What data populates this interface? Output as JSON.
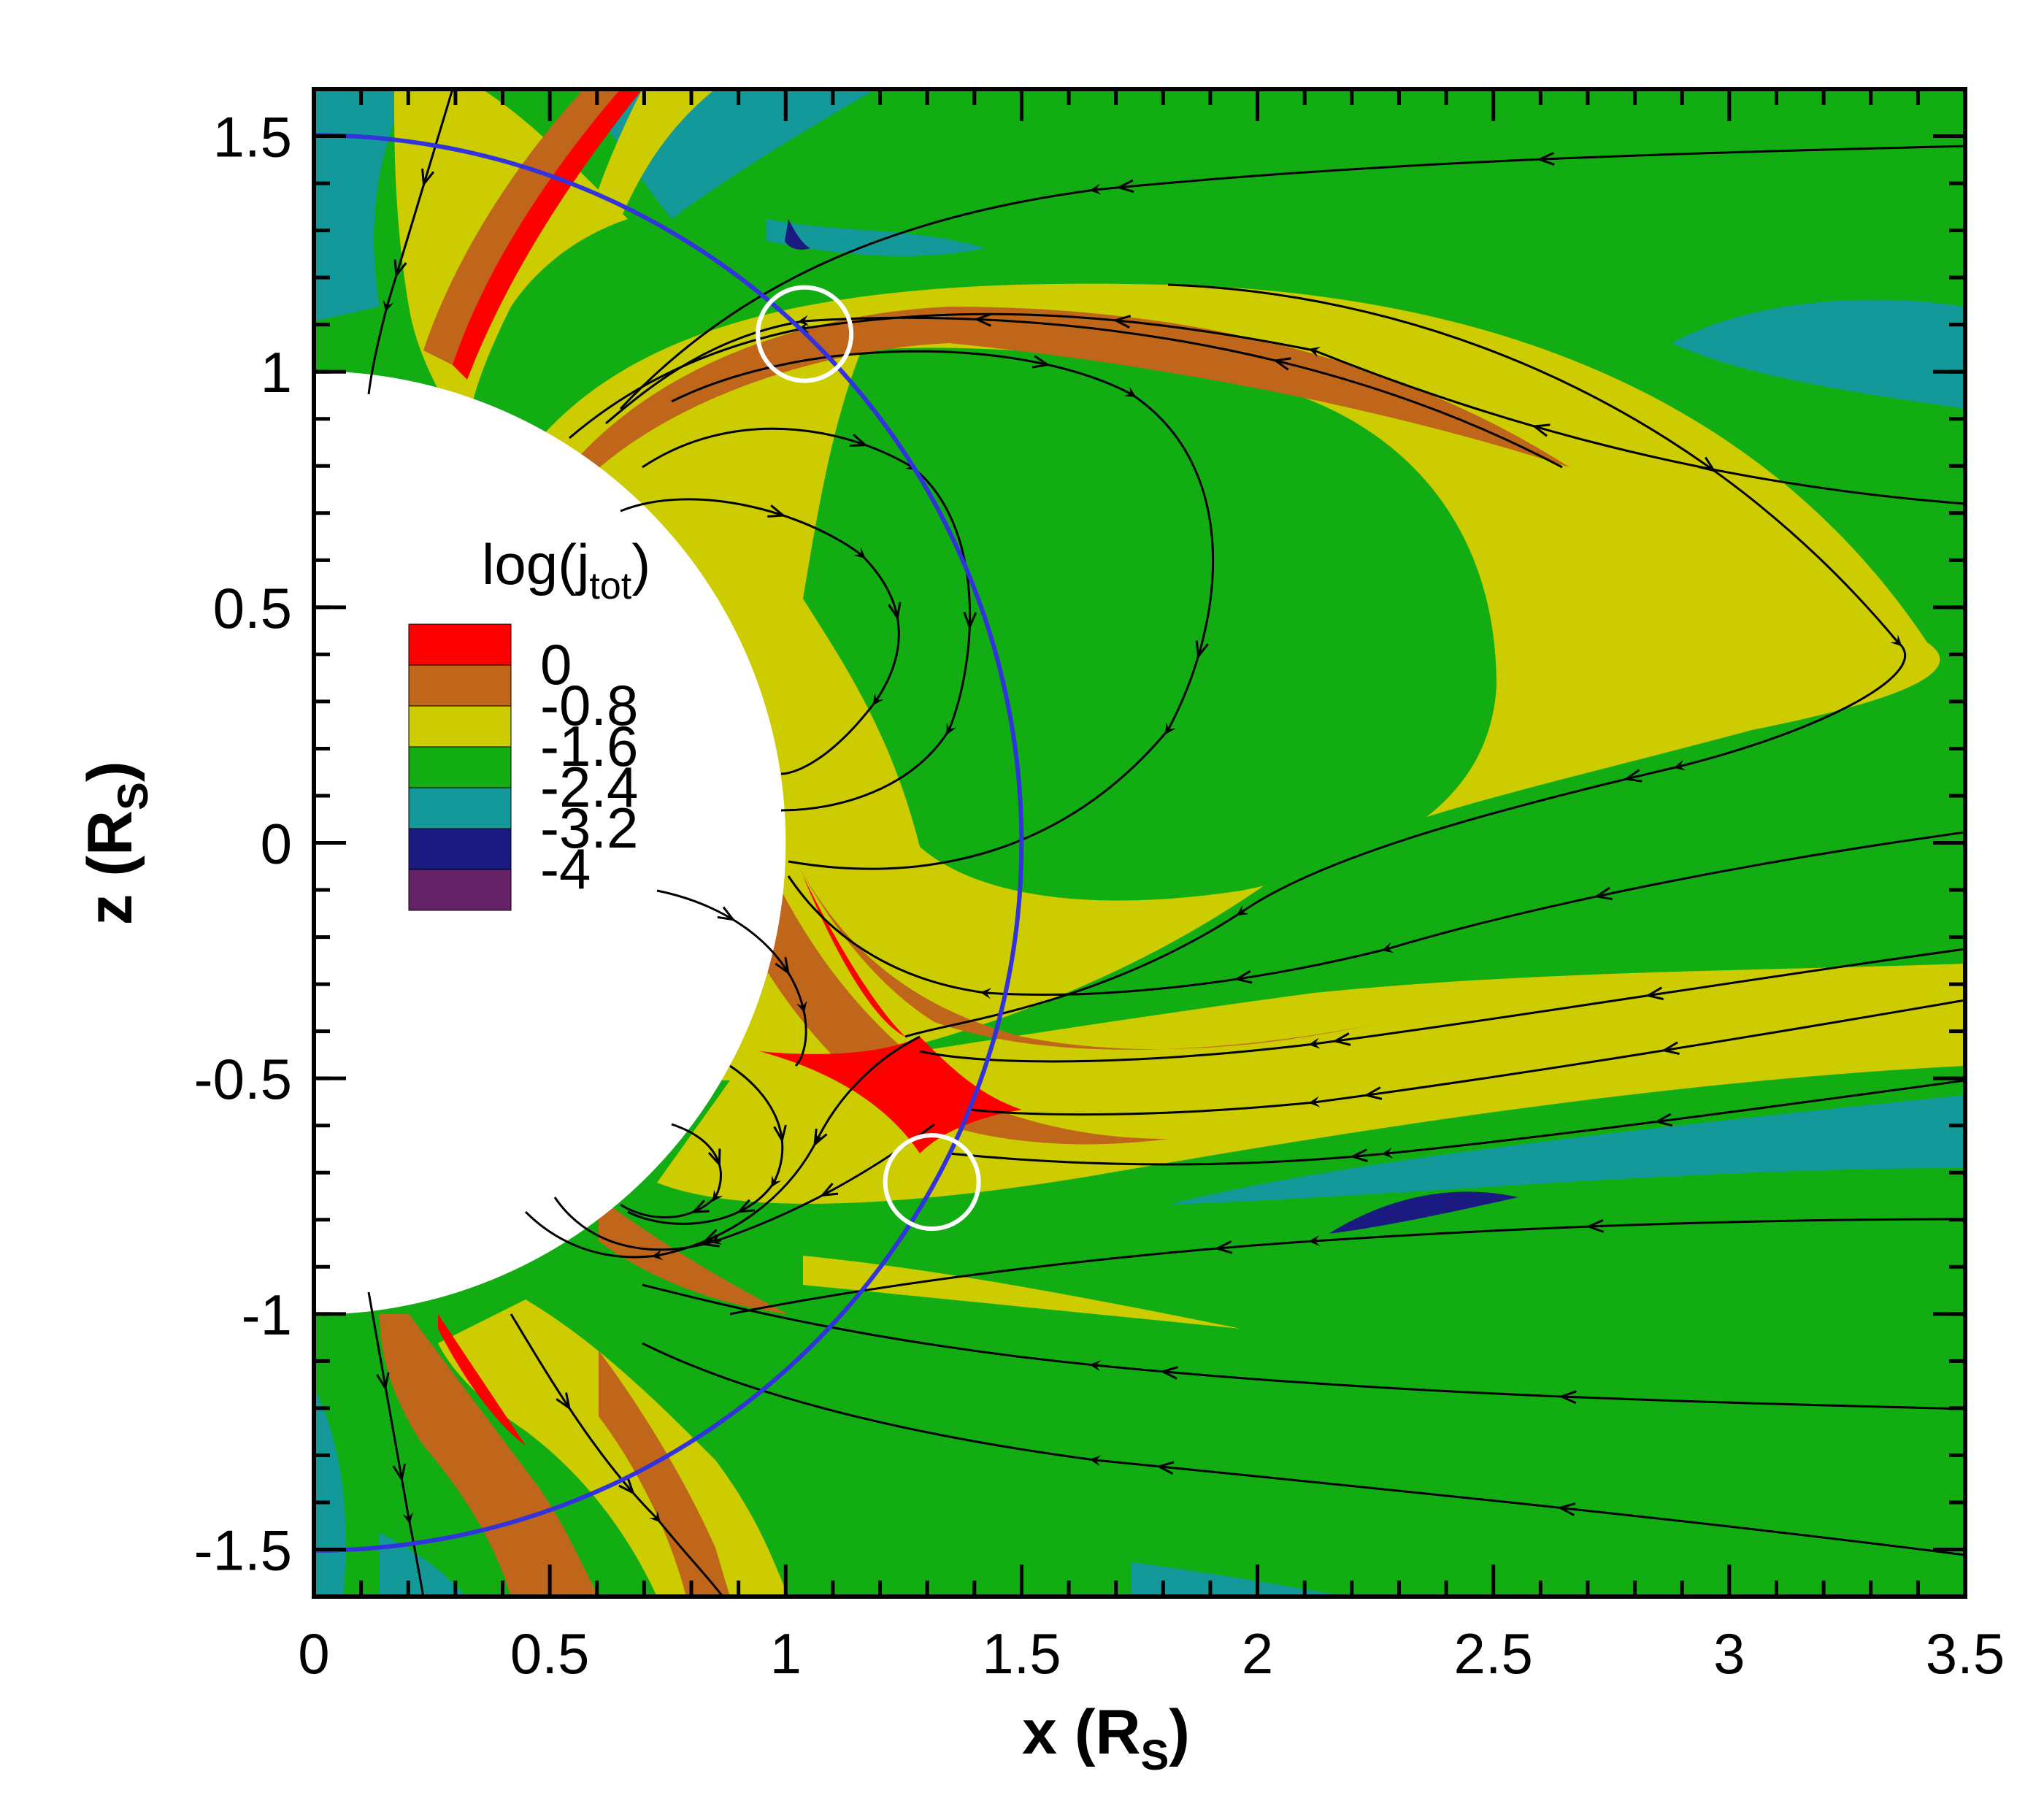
{
  "chart_data": {
    "type": "contour",
    "xlabel": {
      "main": "x (R",
      "sub": "S",
      "close": ")"
    },
    "ylabel": {
      "main": "z (R",
      "sub": "S",
      "close": ")"
    },
    "xlim": [
      0,
      3.5
    ],
    "ylim": [
      -1.6,
      1.6
    ],
    "xticks": [
      "0",
      "0.5",
      "1",
      "1.5",
      "2",
      "2.5",
      "3",
      "3.5"
    ],
    "yticks": [
      "1.5",
      "1",
      "0.5",
      "0",
      "-0.5",
      "-1",
      "-1.5"
    ],
    "ytick_values": [
      1.5,
      1,
      0.5,
      0,
      -0.5,
      -1,
      -1.5
    ],
    "xtick_values": [
      0,
      0.5,
      1,
      1.5,
      2,
      2.5,
      3,
      3.5
    ],
    "colorbar": {
      "title": {
        "main": "log(j",
        "sub": "tot",
        "close": ")"
      },
      "levels": [
        "0",
        "-0.8",
        "-1.6",
        "-2.4",
        "-3.2",
        "-4"
      ],
      "colors": [
        "#ff0000",
        "#c0661a",
        "#cccc00",
        "#12ad12",
        "#139999",
        "#1a1a80",
        "#662266"
      ]
    },
    "sun_radius": 1.0,
    "reference_circle_radius": 1.5,
    "markers": [
      {
        "x": 1.04,
        "y": 1.08
      },
      {
        "x": 1.31,
        "y": -0.72
      }
    ],
    "colors": {
      "background_field": "#12ad12",
      "reference_circle": "#3333dd",
      "marker_circle": "#ffffff",
      "field_line": "#000000"
    }
  }
}
